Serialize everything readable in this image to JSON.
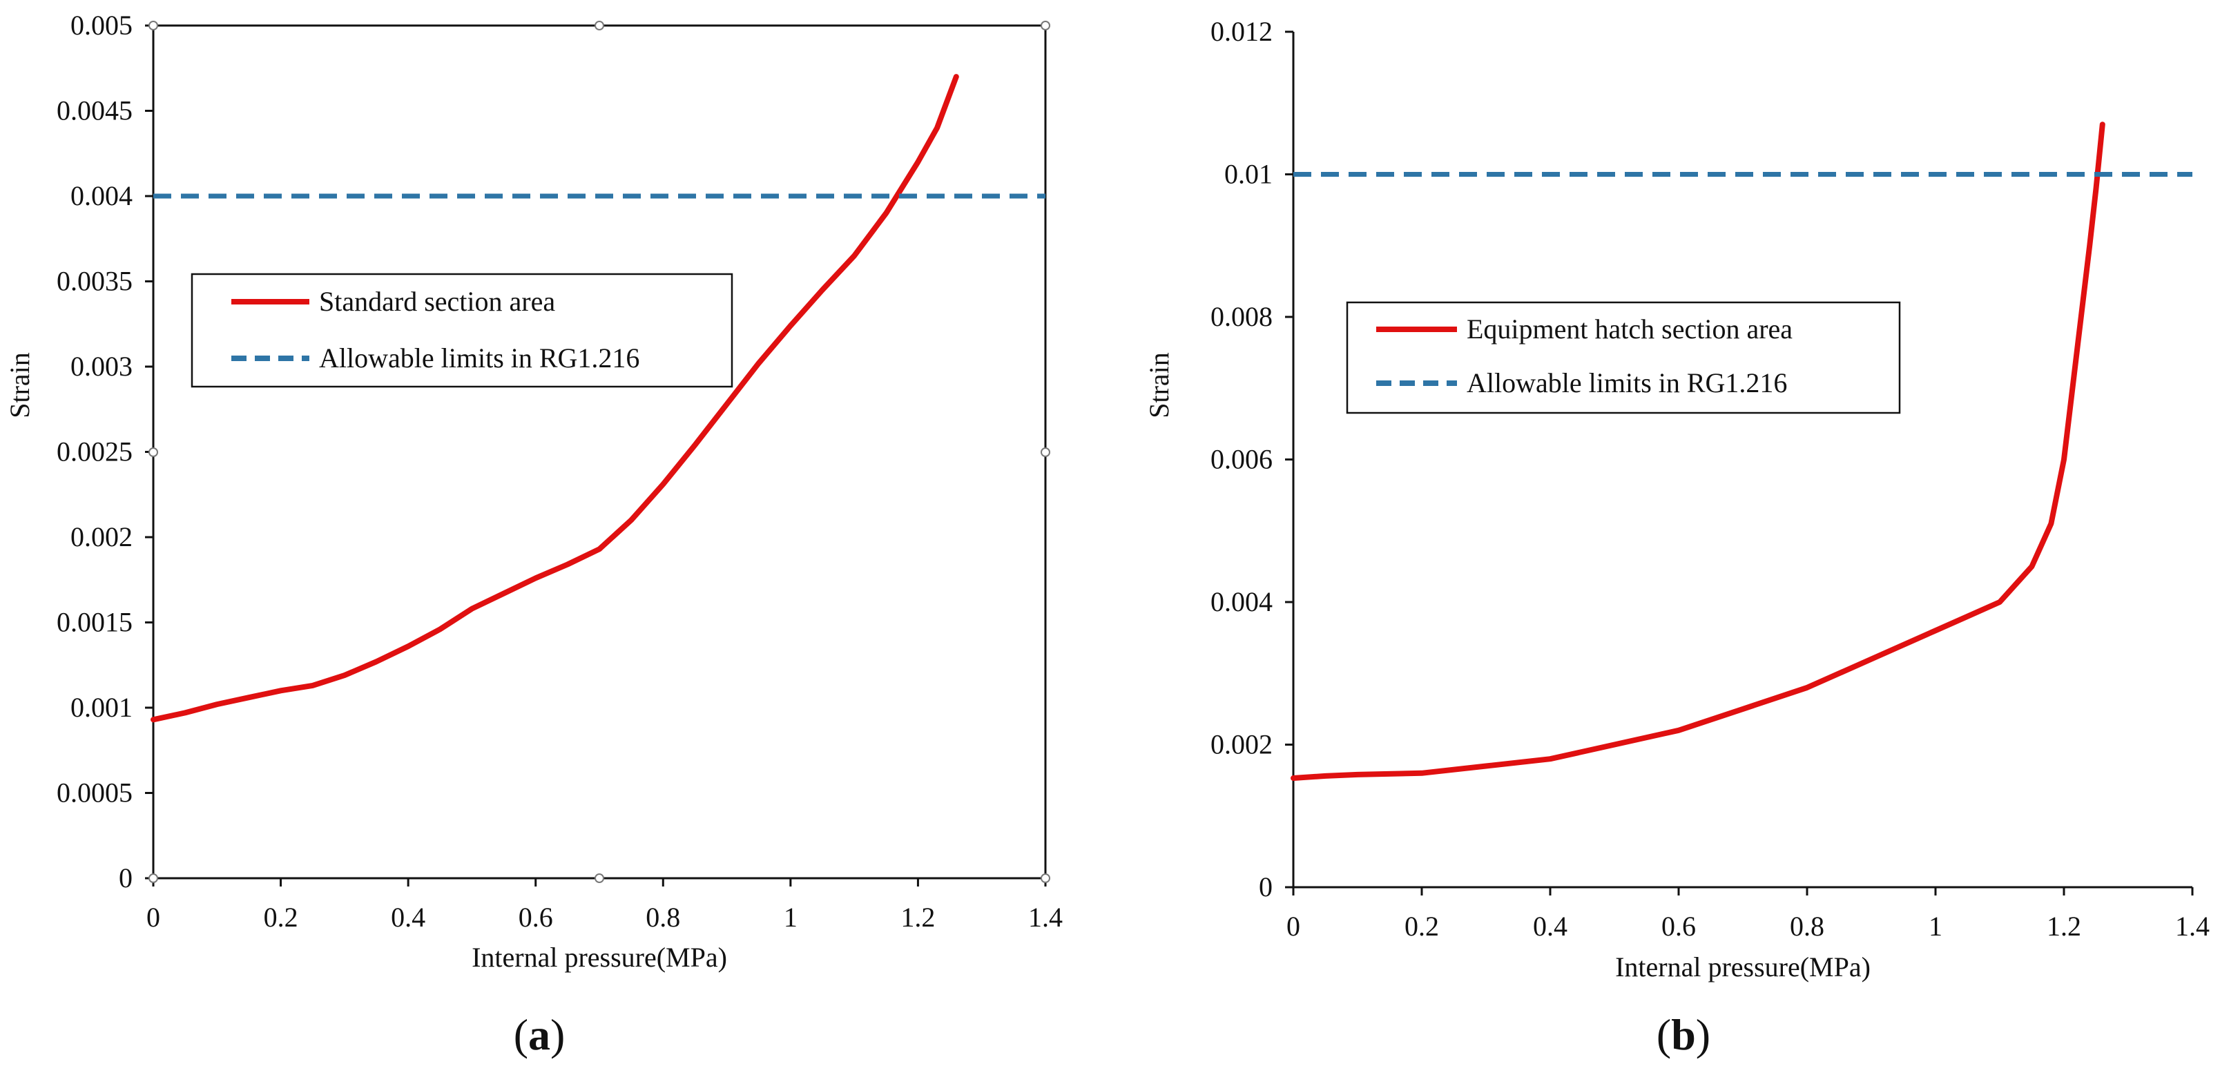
{
  "colors": {
    "strain_curve": "#e01010",
    "allowable_limit": "#2e75a6",
    "axis": "#111111"
  },
  "panels": [
    {
      "label": "(a)",
      "label_letter": "a",
      "xlabel": "Internal pressure(MPa)",
      "ylabel": "Strain",
      "xlim": [
        0,
        1.4
      ],
      "ylim": [
        0,
        0.005
      ],
      "xticks": [
        "0",
        "0.2",
        "0.4",
        "0.6",
        "0.8",
        "1",
        "1.2",
        "1.4"
      ],
      "yticks": [
        "0",
        "0.0005",
        "0.001",
        "0.0015",
        "0.002",
        "0.0025",
        "0.003",
        "0.0035",
        "0.004",
        "0.0045",
        "0.005"
      ],
      "legend": [
        "Standard section area",
        "Allowable limits in RG1.216"
      ]
    },
    {
      "label": "(b)",
      "label_letter": "b",
      "xlabel": "Internal pressure(MPa)",
      "ylabel": "Strain",
      "xlim": [
        0,
        1.4
      ],
      "ylim": [
        0,
        0.012
      ],
      "xticks": [
        "0",
        "0.2",
        "0.4",
        "0.6",
        "0.8",
        "1",
        "1.2",
        "1.4"
      ],
      "yticks": [
        "0",
        "0.002",
        "0.004",
        "0.006",
        "0.008",
        "0.01",
        "0.012"
      ],
      "legend": [
        "Equipment hatch section area",
        "Allowable limits in RG1.216"
      ]
    }
  ],
  "chart_data": [
    {
      "type": "line",
      "xlabel": "Internal pressure(MPa)",
      "ylabel": "Strain",
      "xlim": [
        0,
        1.4
      ],
      "ylim": [
        0,
        0.005
      ],
      "grid": false,
      "legend_position": "left",
      "series": [
        {
          "name": "Standard section area",
          "style": "solid",
          "x": [
            0,
            0.05,
            0.1,
            0.15,
            0.2,
            0.25,
            0.3,
            0.35,
            0.4,
            0.45,
            0.5,
            0.55,
            0.6,
            0.65,
            0.7,
            0.75,
            0.8,
            0.85,
            0.9,
            0.95,
            1.0,
            1.05,
            1.1,
            1.15,
            1.2,
            1.23,
            1.26
          ],
          "y": [
            0.00093,
            0.00097,
            0.00102,
            0.00106,
            0.0011,
            0.00113,
            0.00119,
            0.00127,
            0.00136,
            0.00146,
            0.00158,
            0.00167,
            0.00176,
            0.00184,
            0.00193,
            0.0021,
            0.00231,
            0.00254,
            0.00278,
            0.00302,
            0.00324,
            0.00345,
            0.00365,
            0.0039,
            0.0042,
            0.0044,
            0.0047
          ]
        },
        {
          "name": "Allowable limits in RG1.216",
          "style": "dashed",
          "x": [
            0,
            1.4
          ],
          "y": [
            0.004,
            0.004
          ]
        }
      ]
    },
    {
      "type": "line",
      "xlabel": "Internal pressure(MPa)",
      "ylabel": "Strain",
      "xlim": [
        0,
        1.4
      ],
      "ylim": [
        0,
        0.012
      ],
      "grid": false,
      "legend_position": "left",
      "series": [
        {
          "name": "Equipment hatch section area",
          "style": "solid",
          "x": [
            0,
            0.05,
            0.1,
            0.2,
            0.3,
            0.4,
            0.5,
            0.6,
            0.7,
            0.8,
            0.9,
            1.0,
            1.05,
            1.1,
            1.15,
            1.18,
            1.2,
            1.22,
            1.24,
            1.25,
            1.26
          ],
          "y": [
            0.00153,
            0.00156,
            0.00158,
            0.0016,
            0.0017,
            0.0018,
            0.002,
            0.0022,
            0.0025,
            0.0028,
            0.0032,
            0.0036,
            0.0038,
            0.004,
            0.0045,
            0.0051,
            0.006,
            0.0075,
            0.009,
            0.0098,
            0.0107
          ]
        },
        {
          "name": "Allowable limits in RG1.216",
          "style": "dashed",
          "x": [
            0,
            1.4
          ],
          "y": [
            0.01,
            0.01
          ]
        }
      ]
    }
  ]
}
